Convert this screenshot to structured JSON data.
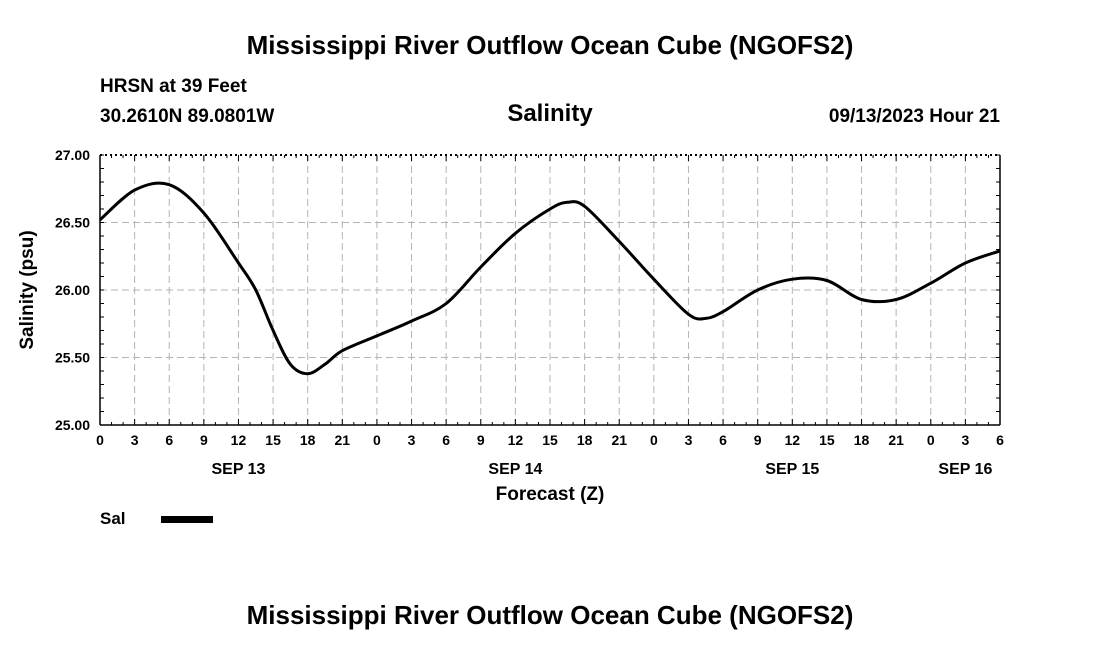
{
  "header": {
    "title": "Mississippi River Outflow Ocean Cube (NGOFS2)",
    "station": "HRSN at 39 Feet",
    "coords": "30.2610N  89.0801W",
    "variable": "Salinity",
    "timestamp": "09/13/2023 Hour 21"
  },
  "footer": {
    "title": "Mississippi River Outflow Ocean Cube (NGOFS2)"
  },
  "chart_data": {
    "type": "line",
    "title": "Salinity",
    "xlabel": "Forecast (Z)",
    "ylabel": "Salinity (psu)",
    "ylim": [
      25.0,
      27.0
    ],
    "xlim": [
      0,
      78
    ],
    "x_unit": "hours since SEP 13 00Z",
    "yticks": [
      "25.00",
      "25.50",
      "26.00",
      "26.50",
      "27.00"
    ],
    "xtick_labels": [
      "0",
      "3",
      "6",
      "9",
      "12",
      "15",
      "18",
      "21",
      "0",
      "3",
      "6",
      "9",
      "12",
      "15",
      "18",
      "21",
      "0",
      "3",
      "6",
      "9",
      "12",
      "15",
      "18",
      "21",
      "0",
      "3",
      "6"
    ],
    "day_labels": [
      {
        "label": "SEP 13",
        "hour": 12
      },
      {
        "label": "SEP 14",
        "hour": 36
      },
      {
        "label": "SEP 15",
        "hour": 60
      },
      {
        "label": "SEP 16",
        "hour": 75
      }
    ],
    "grid": true,
    "series": [
      {
        "name": "Sal",
        "x": [
          0,
          3,
          6,
          9,
          12,
          13.5,
          15,
          16.5,
          18,
          19.5,
          21,
          24,
          27,
          30,
          33,
          36,
          39,
          40.5,
          42,
          45,
          48,
          51,
          52.5,
          54,
          57,
          60,
          63,
          66,
          69,
          72,
          75,
          78
        ],
        "values": [
          26.52,
          26.74,
          26.78,
          26.57,
          26.2,
          26.0,
          25.7,
          25.45,
          25.38,
          25.45,
          25.55,
          25.66,
          25.77,
          25.9,
          26.17,
          26.42,
          26.6,
          26.65,
          26.62,
          26.36,
          26.08,
          25.82,
          25.79,
          25.84,
          26.0,
          26.08,
          26.07,
          25.93,
          25.93,
          26.05,
          26.2,
          26.29
        ]
      }
    ],
    "legend": [
      {
        "label": "Sal",
        "position": "bottom-left"
      }
    ]
  }
}
